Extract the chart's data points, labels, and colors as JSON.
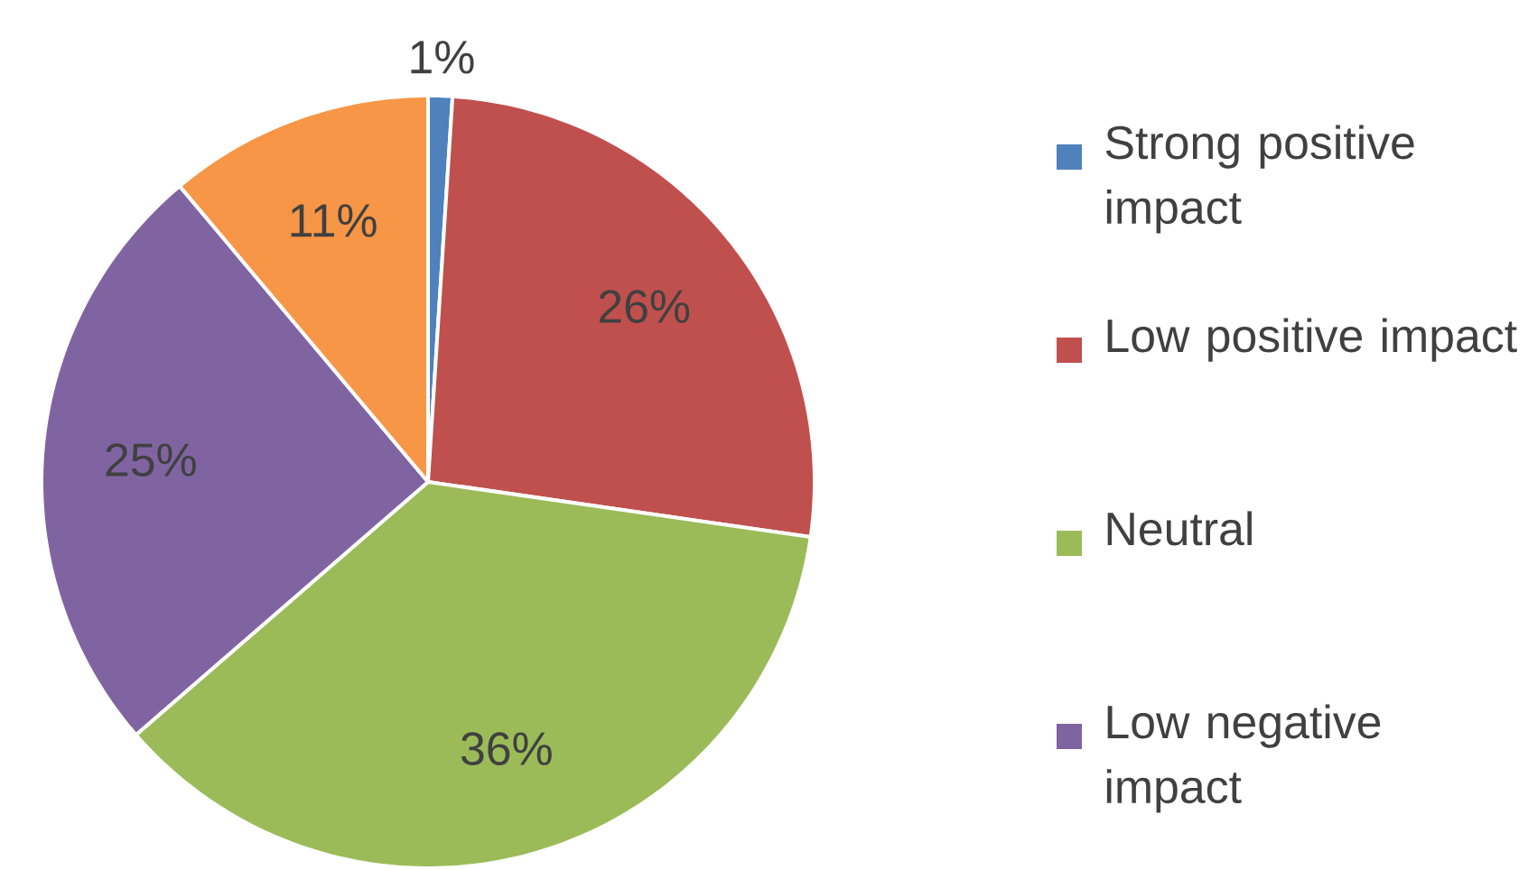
{
  "chart_data": {
    "type": "pie",
    "categories": [
      "Strong positive impact",
      "Low positive impact",
      "Neutral",
      "Low negative impact",
      null
    ],
    "values": [
      1,
      26,
      36,
      25,
      11
    ],
    "value_labels": [
      "1%",
      "26%",
      "36%",
      "25%",
      "11%"
    ],
    "colors": [
      "#4f81bd",
      "#c0504d",
      "#9bbb59",
      "#8064a2",
      "#f79646"
    ],
    "legend": "right"
  }
}
